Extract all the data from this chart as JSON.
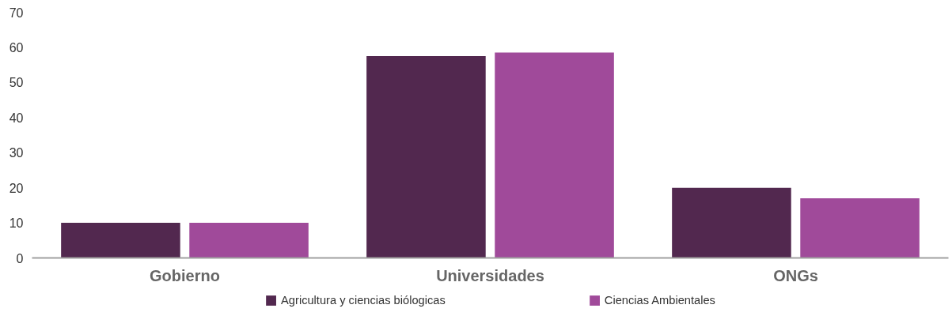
{
  "chart_data": {
    "type": "bar",
    "categories": [
      "Gobierno",
      "Universidades",
      "ONGs"
    ],
    "series": [
      {
        "name": "Agricultura y ciencias biólogicas",
        "color": "#52284f",
        "values": [
          10,
          57.5,
          20
        ]
      },
      {
        "name": "Ciencias Ambientales",
        "color": "#a04a9a",
        "values": [
          10,
          58.5,
          17
        ]
      }
    ],
    "ylim": [
      0,
      70
    ],
    "yticks": [
      0,
      10,
      20,
      30,
      40,
      50,
      60,
      70
    ],
    "grid": false,
    "legend": "bottom"
  }
}
